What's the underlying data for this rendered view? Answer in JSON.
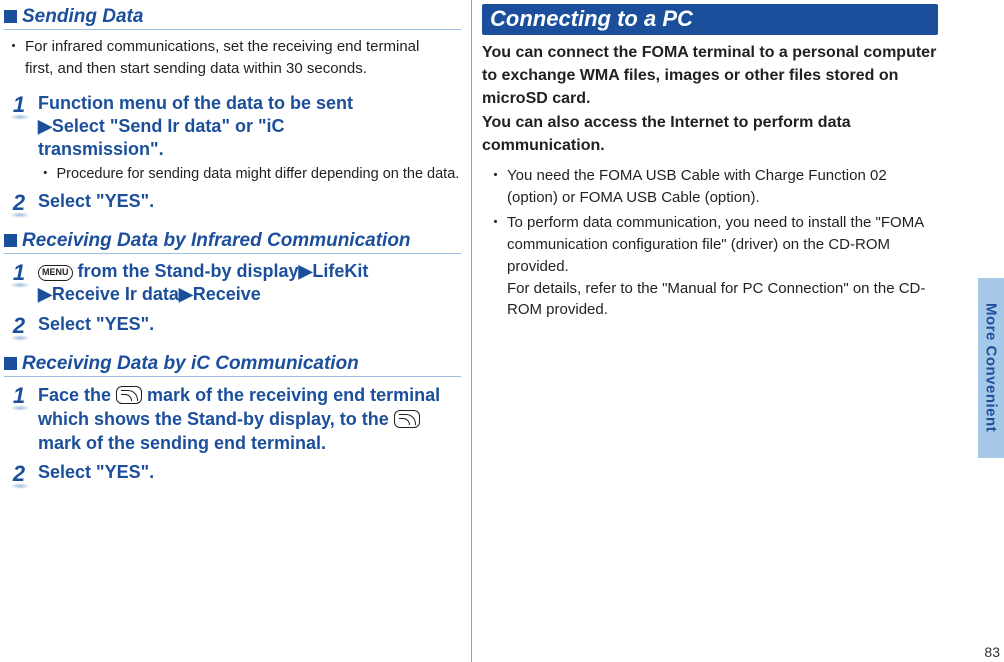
{
  "sideTab": "More Convenient",
  "pageNumber": "83",
  "left": {
    "h1": "Sending Data",
    "note1a": "For infrared communications, set the receiving end terminal",
    "note1b": "first, and then start sending data within 30 seconds.",
    "s1": {
      "step1a": "Function menu of the data to be sent",
      "step1b_pre": "▶",
      "step1b": "Select \"Send Ir data\" or \"iC",
      "step1c": "transmission\".",
      "sub1": "Procedure for sending data might differ depending on the data.",
      "step2": "Select \"YES\"."
    },
    "h2": "Receiving Data by Infrared Communication",
    "s2": {
      "step1a_post": " from the Stand-by display",
      "step1a_tri": "▶",
      "step1a_end": "LifeKit",
      "step1b_tri1": "▶",
      "step1b_mid": "Receive Ir data",
      "step1b_tri2": "▶",
      "step1b_end": "Receive",
      "step2": "Select \"YES\"."
    },
    "h3": "Receiving Data by iC Communication",
    "s3": {
      "step1a": "Face the ",
      "step1b": " mark of the receiving end terminal which shows the Stand-by display, to the ",
      "step1c": " mark of the sending end terminal.",
      "step2": "Select \"YES\"."
    }
  },
  "right": {
    "header": "Connecting to a PC",
    "lead": "You can connect the FOMA terminal to a personal computer to exchange WMA files, images or other files stored on microSD card.\nYou can also access the Internet to perform data communication.",
    "b1": "You need the FOMA USB Cable with Charge Function 02 (option) or FOMA USB Cable (option).",
    "b2": "To perform data communication, you need to install the \"FOMA communication configuration file\" (driver) on the CD-ROM provided.\nFor details, refer to the \"Manual for PC Connection\" on the CD-ROM provided."
  }
}
